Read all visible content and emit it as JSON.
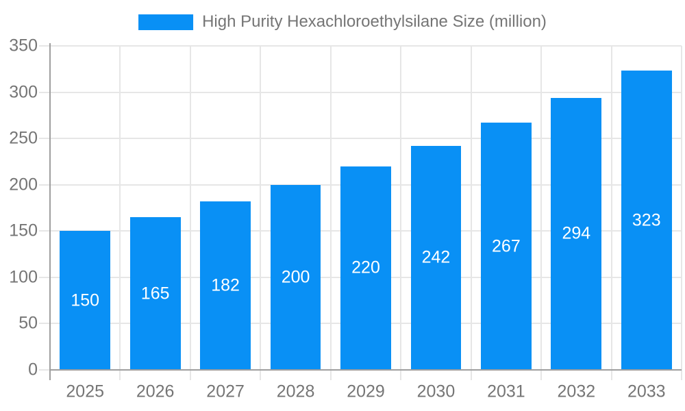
{
  "legend": {
    "position": "top-center"
  },
  "chart_data": {
    "type": "bar",
    "title": "High Purity Hexachloroethylsilane Size (million)",
    "legend_entries": [
      "High Purity Hexachloroethylsilane Size (million)"
    ],
    "categories": [
      "2025",
      "2026",
      "2027",
      "2028",
      "2029",
      "2030",
      "2031",
      "2032",
      "2033"
    ],
    "series": [
      {
        "name": "High Purity Hexachloroethylsilane Size (million)",
        "values": [
          150,
          165,
          182,
          200,
          220,
          242,
          267,
          294,
          323
        ]
      }
    ],
    "values": [
      150,
      165,
      182,
      200,
      220,
      242,
      267,
      294,
      323
    ],
    "value_labels_shown": true,
    "value_label_position": "inside-center",
    "xlabel": "",
    "ylabel": "",
    "ylim": [
      0,
      350
    ],
    "yticks": [
      0,
      50,
      100,
      150,
      200,
      250,
      300,
      350
    ],
    "grid": true,
    "legend_position": "top-center",
    "colors": {
      "bar": "#0990F5",
      "axis": "#9E9E9E",
      "grid": "#E6E6E6",
      "tick_label": "#757575",
      "value_label": "#FFFFFF",
      "background": "#FFFFFF"
    }
  }
}
